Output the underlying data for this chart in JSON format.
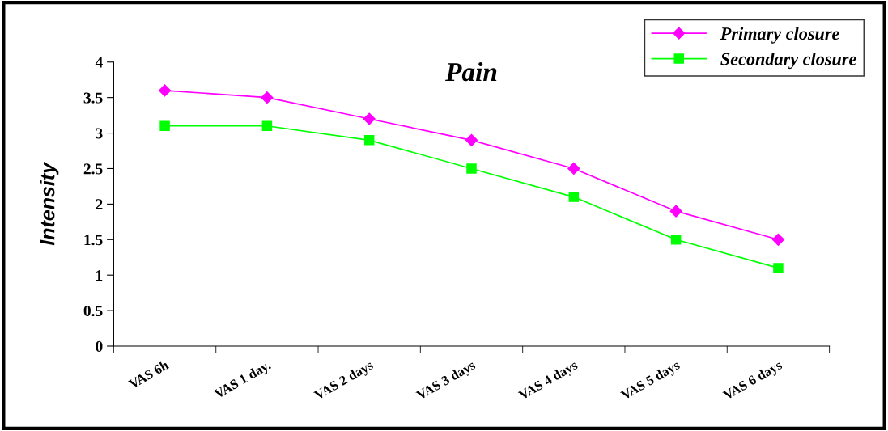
{
  "chart_data": {
    "type": "line",
    "title": "Pain",
    "ylabel": "Intensity",
    "categories": [
      "VAS 6h",
      "VAS 1 day.",
      "VAS 2 days",
      "VAS 3 days",
      "VAS 4 days",
      "VAS 5 days",
      "VAS 6 days"
    ],
    "series": [
      {
        "name": "Primary closure",
        "color": "#ff00ff",
        "marker": "diamond",
        "values": [
          3.6,
          3.5,
          3.2,
          2.9,
          2.5,
          1.9,
          1.5
        ]
      },
      {
        "name": "Secondary closure",
        "color": "#00ff00",
        "marker": "square",
        "values": [
          3.1,
          3.1,
          2.9,
          2.5,
          2.1,
          1.5,
          1.1
        ]
      }
    ],
    "ylim": [
      0,
      4
    ],
    "yticks": [
      0,
      0.5,
      1,
      1.5,
      2,
      2.5,
      3,
      3.5,
      4
    ],
    "grid": false,
    "legend": "top right",
    "line_style": "solid"
  }
}
